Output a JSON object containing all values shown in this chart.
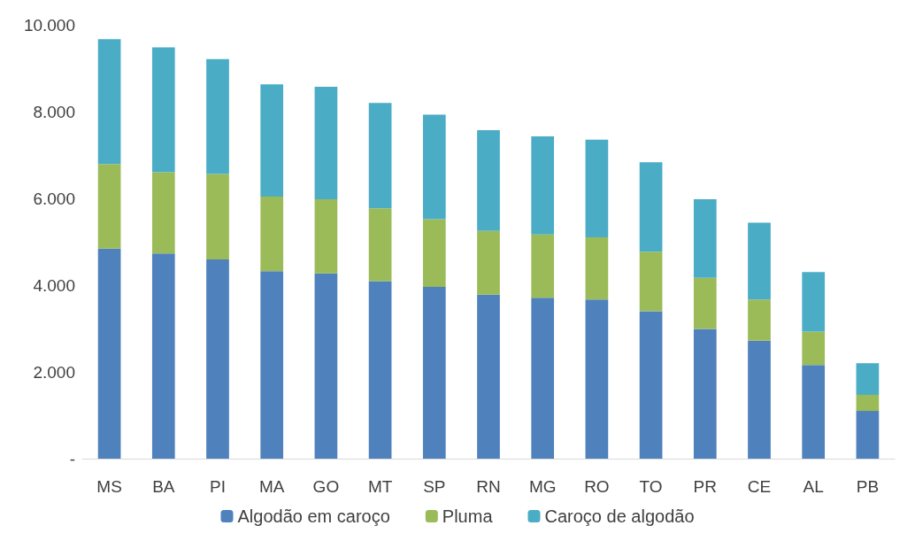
{
  "chart_data": {
    "type": "bar",
    "stacked": true,
    "categories": [
      "MS",
      "BA",
      "PI",
      "MA",
      "GO",
      "MT",
      "SP",
      "RN",
      "MG",
      "RO",
      "TO",
      "PR",
      "CE",
      "AL",
      "PB"
    ],
    "series": [
      {
        "name": "Algodão em caroço",
        "color": "#4f81bd",
        "values": [
          4840,
          4730,
          4590,
          4320,
          4270,
          4090,
          3960,
          3780,
          3710,
          3670,
          3400,
          2990,
          2720,
          2160,
          1100
        ]
      },
      {
        "name": "Pluma",
        "color": "#9bbb59",
        "values": [
          1950,
          1870,
          1970,
          1720,
          1710,
          1680,
          1560,
          1470,
          1460,
          1430,
          1370,
          1180,
          950,
          770,
          370
        ]
      },
      {
        "name": "Caroço de algodão",
        "color": "#4bacc6",
        "values": [
          2880,
          2880,
          2650,
          2590,
          2590,
          2430,
          2410,
          2320,
          2260,
          2250,
          2060,
          1810,
          1770,
          1370,
          730
        ]
      }
    ],
    "ylim": [
      0,
      10000
    ],
    "yticks": [
      {
        "value": 0,
        "label": "-"
      },
      {
        "value": 2000,
        "label": "2.000"
      },
      {
        "value": 4000,
        "label": "4.000"
      },
      {
        "value": 6000,
        "label": "6.000"
      },
      {
        "value": 8000,
        "label": "8.000"
      },
      {
        "value": 10000,
        "label": "10.000"
      }
    ],
    "grid": false,
    "legend": "bottom"
  }
}
